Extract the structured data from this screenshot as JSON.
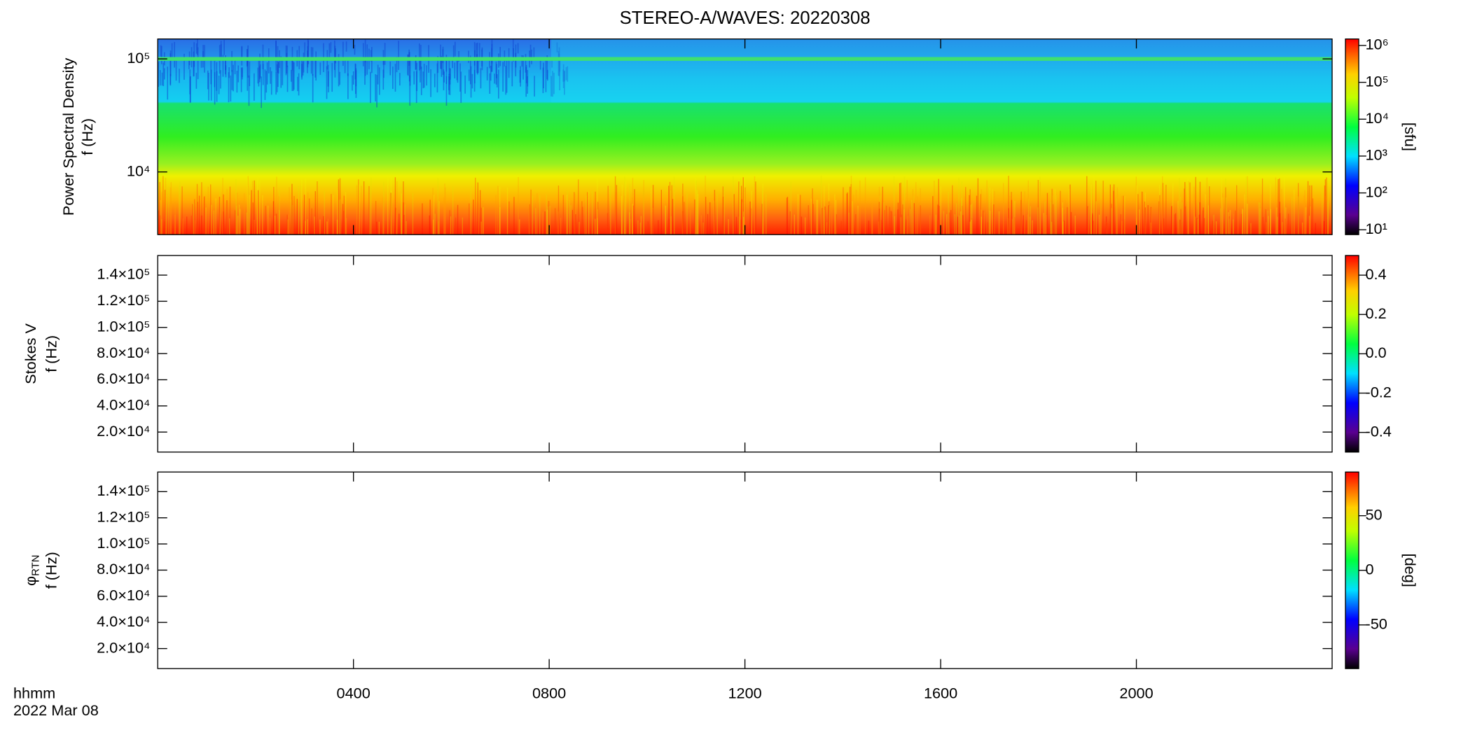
{
  "chart_data": [
    {
      "type": "heatmap",
      "title": "STEREO-A/WAVES: 20220308",
      "ylabel": [
        "Power Spectral Density",
        "f (Hz)"
      ],
      "yscale": "log",
      "ylim": [
        2790,
        150000
      ],
      "yticks": [
        {
          "value": 10000,
          "label": "10⁴"
        },
        {
          "value": 100000,
          "label": "10⁵"
        }
      ],
      "colorbar": {
        "scale": "log",
        "lim": [
          7.4,
          1500000
        ],
        "label": "[sfu]",
        "ticks": [
          {
            "value": 10,
            "label": "10¹"
          },
          {
            "value": 100,
            "label": "10²"
          },
          {
            "value": 1000,
            "label": "10³"
          },
          {
            "value": 10000,
            "label": "10⁴"
          },
          {
            "value": 100000,
            "label": "10⁵"
          },
          {
            "value": 1000000,
            "label": "10⁶"
          }
        ]
      }
    },
    {
      "type": "heatmap",
      "ylabel": [
        "Stokes V",
        "f (Hz)"
      ],
      "yscale": "linear",
      "ylim": [
        4700,
        155000
      ],
      "yticks": [
        {
          "value": 20000,
          "label": "2.0×10⁴"
        },
        {
          "value": 40000,
          "label": "4.0×10⁴"
        },
        {
          "value": 60000,
          "label": "6.0×10⁴"
        },
        {
          "value": 80000,
          "label": "8.0×10⁴"
        },
        {
          "value": 100000,
          "label": "1.0×10⁵"
        },
        {
          "value": 120000,
          "label": "1.2×10⁵"
        },
        {
          "value": 140000,
          "label": "1.4×10⁵"
        }
      ],
      "colorbar": {
        "scale": "linear",
        "lim": [
          -0.5,
          0.5
        ],
        "ticks": [
          -0.4,
          -0.2,
          {
            "value": 0,
            "label": "0.0"
          },
          0.2,
          0.4
        ]
      }
    },
    {
      "type": "heatmap",
      "ylabel": [
        "φ",
        "f (Hz)"
      ],
      "ylabel_subscript": "RTN",
      "yscale": "linear",
      "ylim": [
        4700,
        155000
      ],
      "yticks": [
        {
          "value": 20000,
          "label": "2.0×10⁴"
        },
        {
          "value": 40000,
          "label": "4.0×10⁴"
        },
        {
          "value": 60000,
          "label": "6.0×10⁴"
        },
        {
          "value": 80000,
          "label": "8.0×10⁴"
        },
        {
          "value": 100000,
          "label": "1.0×10⁵"
        },
        {
          "value": 120000,
          "label": "1.2×10⁵"
        },
        {
          "value": 140000,
          "label": "1.4×10⁵"
        }
      ],
      "colorbar": {
        "scale": "linear",
        "lim": [
          -90,
          90
        ],
        "label": "[deg]",
        "ticks": [
          -50,
          0,
          50
        ]
      },
      "xlabel": "hhmm",
      "date": "2022 Mar 08",
      "xlim": [
        0,
        24
      ],
      "xticks": [
        {
          "value": 4,
          "label": "0400"
        },
        {
          "value": 8,
          "label": "0800"
        },
        {
          "value": 12,
          "label": "1200"
        },
        {
          "value": 16,
          "label": "1600"
        },
        {
          "value": 20,
          "label": "2000"
        }
      ]
    }
  ]
}
